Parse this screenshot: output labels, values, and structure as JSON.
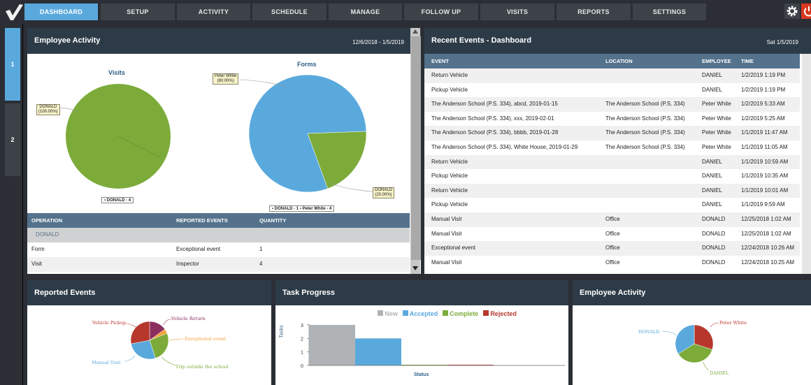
{
  "nav": {
    "tabs": [
      "DASHBOARD",
      "SETUP",
      "ACTIVITY",
      "SCHEDULE",
      "MANAGE",
      "FOLLOW UP",
      "VISITS",
      "REPORTS",
      "SETTINGS"
    ],
    "active": "DASHBOARD"
  },
  "rail": {
    "items": [
      "1",
      "2"
    ]
  },
  "employee_activity": {
    "title": "Employee Activity",
    "date_range": "12/6/2018 - 1/5/2019",
    "visits_chart": {
      "title": "Visits",
      "slice_label": "DONALD\n(100.00%)",
      "legend": "▪ DONALD - 4",
      "chart_data": {
        "type": "pie",
        "title": "Visits",
        "categories": [
          "DONALD"
        ],
        "values": [
          4
        ],
        "colors": [
          "#7cab3a"
        ]
      }
    },
    "forms_chart": {
      "title": "Forms",
      "label_peter": "Peter White\n(80.00%)",
      "label_donald": "DONALD\n(20.00%)",
      "legend": "▪ DONALD - 1 ▪ Peter White - 4",
      "chart_data": {
        "type": "pie",
        "title": "Forms",
        "categories": [
          "Peter White",
          "DONALD"
        ],
        "values": [
          4,
          1
        ],
        "colors": [
          "#5aa9dd",
          "#7cab3a"
        ]
      }
    },
    "table": {
      "headers": [
        "OPERATION",
        "REPORTED EVENTS",
        "QUANTITY"
      ],
      "group": "DONALD",
      "rows": [
        [
          "Form",
          "Exceptional event",
          "1"
        ],
        [
          "Visit",
          "Inspector",
          "4"
        ]
      ]
    }
  },
  "recent_events": {
    "title": "Recent Events - Dashboard",
    "date": "Sat 1/5/2019",
    "headers": [
      "EVENT",
      "LOCATION",
      "EMPLOYEE",
      "TIME"
    ],
    "rows": [
      [
        "Return Vehicle",
        "",
        "DANIEL",
        "1/2/2019 1:19 PM"
      ],
      [
        "Pickup Vehicle",
        "",
        "DANIEL",
        "1/2/2019 1:19 PM"
      ],
      [
        "The Anderson School (P.S. 334), abcd, 2019-01-15",
        "The Anderson School (P.S. 334)",
        "Peter White",
        "1/2/2019 5:33 AM"
      ],
      [
        "The Anderson School (P.S. 334), xxx, 2019-02-01",
        "The Anderson School (P.S. 334)",
        "Peter White",
        "1/2/2019 5:25 AM"
      ],
      [
        "The Anderson School (P.S. 334), bbbb, 2019-01-28",
        "The Anderson School (P.S. 334)",
        "Peter White",
        "1/1/2019 11:47 AM"
      ],
      [
        "The Anderson School (P.S. 334), White House, 2019-01-29",
        "The Anderson School (P.S. 334)",
        "Peter White",
        "1/1/2019 11:05 AM"
      ],
      [
        "Return Vehicle",
        "",
        "DANIEL",
        "1/1/2019 10:59 AM"
      ],
      [
        "Pickup Vehicle",
        "",
        "DANIEL",
        "1/1/2019 10:35 AM"
      ],
      [
        "Return Vehicle",
        "",
        "DANIEL",
        "1/1/2019 10:01 AM"
      ],
      [
        "Pickup Vehicle",
        "",
        "DANIEL",
        "1/1/2019 9:59 AM"
      ],
      [
        "Manual Visit",
        "Office",
        "DONALD",
        "12/25/2018 1:02 AM"
      ],
      [
        "Manual Visit",
        "Office",
        "DONALD",
        "12/25/2018 1:02 AM"
      ],
      [
        "Exceptional event",
        "Office",
        "DONALD",
        "12/24/2018 10:26 AM"
      ],
      [
        "Manual Visit",
        "Office",
        "DONALD",
        "12/24/2018 10:25 AM"
      ]
    ]
  },
  "reported_events": {
    "title": "Reported Events",
    "chart_data": {
      "type": "pie",
      "categories": [
        "Vehicle Return",
        "Exceptional event",
        "Trip outside the school",
        "Manual Visit",
        "Vehicle Pickup"
      ],
      "values": [
        15,
        4,
        26,
        27,
        28
      ],
      "colors": [
        "#8b2f5f",
        "#f0a33a",
        "#7cab3a",
        "#5aa9dd",
        "#b7372c"
      ]
    }
  },
  "task_progress": {
    "title": "Task Progress",
    "ylabel": "Tasks",
    "xlabel": "Status",
    "legend": [
      "New",
      "Accepted",
      "Complete",
      "Rejected"
    ],
    "chart_data": {
      "type": "bar",
      "categories": [
        "New",
        "Accepted",
        "Complete",
        "Rejected"
      ],
      "values": [
        3,
        2,
        0,
        0
      ],
      "ylim": [
        0,
        3
      ],
      "yticks": [
        "0",
        "1",
        "2",
        "3"
      ],
      "xlabel": "Status",
      "ylabel": "Tasks",
      "colors": [
        "#b0b3b5",
        "#5aa9dd",
        "#7cab3a",
        "#b7372c"
      ]
    }
  },
  "employee_activity_2": {
    "title": "Employee Activity",
    "chart_data": {
      "type": "pie",
      "categories": [
        "Peter White",
        "DANIEL",
        "DONALD"
      ],
      "values": [
        30,
        36,
        34
      ],
      "colors": [
        "#b7372c",
        "#7cab3a",
        "#5aa9dd"
      ]
    }
  }
}
